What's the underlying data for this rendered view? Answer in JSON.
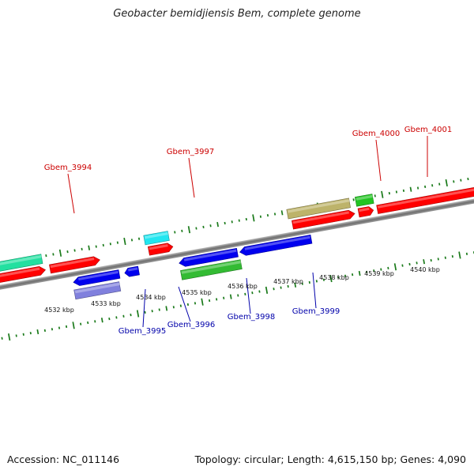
{
  "title": "Geobacter bemidjiensis Bem, complete genome",
  "footer": {
    "accession": "Accession: NC_011146",
    "info": "Topology: circular; Length: 4,615,150 bp; Genes: 4,090"
  },
  "colors": {
    "backbone": "#7f7f7f",
    "forward_label": "#cc0000",
    "reverse_label": "#0000aa",
    "tick": "#1a7a1a"
  },
  "kbp_labels": [
    "4532 kbp",
    "4533 kbp",
    "4534 kbp",
    "4535 kbp",
    "4536 kbp",
    "4537 kbp",
    "4538 kbp",
    "4539 kbp",
    "4540 kbp"
  ],
  "genes": [
    {
      "name": "Gbem_3994",
      "strand": "forward",
      "color": "#ff0000"
    },
    {
      "name": "Gbem_3995",
      "strand": "reverse",
      "color": "#0000ee"
    },
    {
      "name": "Gbem_3996",
      "strand": "reverse",
      "color": "#0000ee"
    },
    {
      "name": "Gbem_3997",
      "strand": "forward",
      "color": "#ff0000"
    },
    {
      "name": "Gbem_3998",
      "strand": "reverse",
      "color": "#0000ee"
    },
    {
      "name": "Gbem_3999",
      "strand": "reverse",
      "color": "#0000ee"
    },
    {
      "name": "Gbem_4000",
      "strand": "forward",
      "color": "#ff0000"
    },
    {
      "name": "Gbem_4001",
      "strand": "forward",
      "color": "#ff0000"
    }
  ]
}
